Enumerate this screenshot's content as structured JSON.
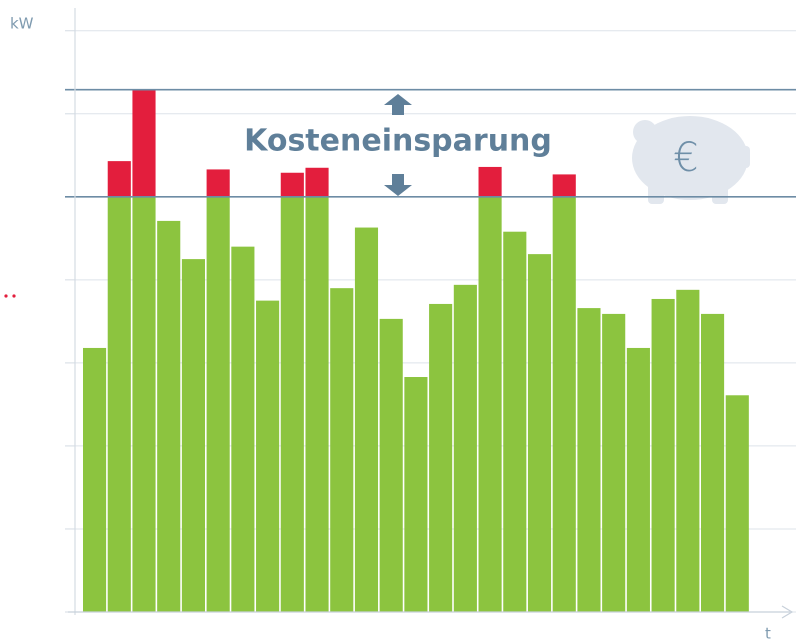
{
  "chart_data": {
    "type": "bar",
    "stacked": true,
    "ylabel": "kW",
    "xlabel": "t",
    "annotations": [
      "Kosteneinsparung",
      "€"
    ],
    "categories": [
      null,
      null,
      null,
      null,
      null,
      null,
      null,
      null,
      null,
      null,
      null,
      null,
      null,
      null,
      null,
      null,
      null,
      null,
      null,
      null,
      null,
      null,
      null,
      null,
      null,
      null,
      null
    ],
    "series": [
      {
        "color": "#8cc43f",
        "values": [
          3.18,
          5.0,
          5.0,
          4.71,
          4.25,
          5.0,
          4.4,
          3.75,
          5.0,
          5.0,
          3.9,
          4.63,
          3.53,
          2.83,
          3.71,
          3.94,
          5.0,
          4.58,
          4.31,
          5.0,
          3.66,
          3.59,
          3.18,
          3.77,
          3.88,
          3.59,
          2.61
        ]
      },
      {
        "color": "#e31e3d",
        "values": [
          null,
          0.43,
          1.29,
          null,
          null,
          0.33,
          null,
          null,
          0.29,
          0.35,
          null,
          null,
          null,
          null,
          null,
          null,
          0.36,
          null,
          null,
          0.27,
          null,
          null,
          null,
          null,
          null,
          null,
          null
        ]
      }
    ],
    "reference_lines": [
      {
        "value": 5.0
      },
      {
        "value": 6.29
      }
    ],
    "reference_color": "#6d8ca5",
    "ylim": [
      0,
      7.25
    ],
    "yticks": [
      0,
      1,
      2,
      3,
      4,
      5,
      6,
      7
    ],
    "grid": true
  }
}
